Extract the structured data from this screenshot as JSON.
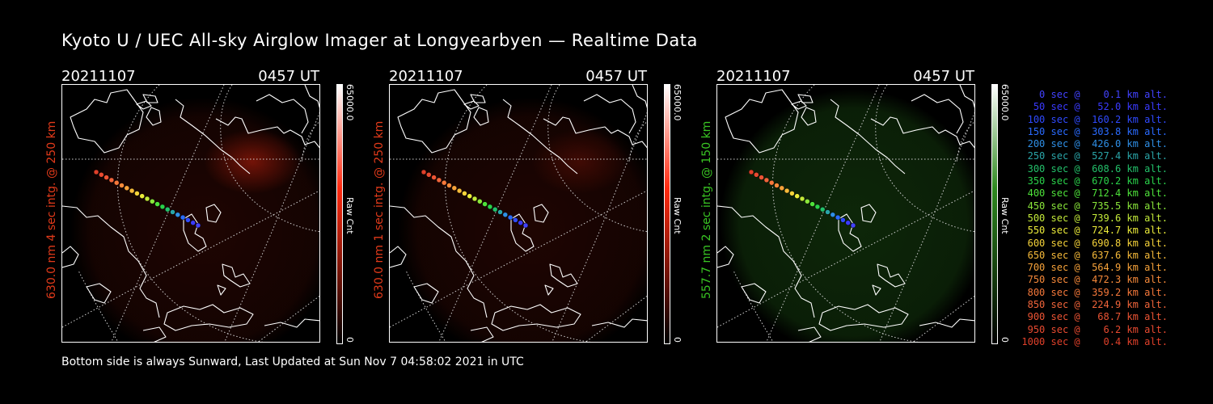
{
  "title": "Kyoto U / UEC All-sky Airglow Imager at Longyearbyen — Realtime Data",
  "footer": "Bottom side is always Sunward, Last Updated at Sun Nov  7 04:58:02 2021 in UTC",
  "panels": [
    {
      "date": "20211107",
      "time": "0457 UT",
      "ylabel": "630.0 nm 4 sec intg. @ 250 km",
      "label_color": "#e23a1a",
      "cbar_max": "65000.0",
      "cbar_min": "0",
      "cbar_unit": "Raw Cnt",
      "glow_color": "#ff2a10"
    },
    {
      "date": "20211107",
      "time": "0457 UT",
      "ylabel": "630.0 nm 1 sec intg. @ 250 km",
      "label_color": "#e23a1a",
      "cbar_max": "65000.0",
      "cbar_min": "0",
      "cbar_unit": "Raw Cnt",
      "glow_color": "#ff2a10"
    },
    {
      "date": "20211107",
      "time": "0457 UT",
      "ylabel": "557.7 nm 2 sec intg. @ 150 km",
      "label_color": "#39c423",
      "cbar_max": "65000.0",
      "cbar_min": "0",
      "cbar_unit": "Raw Cnt",
      "glow_color": "#2f8a20"
    }
  ],
  "legend": [
    {
      "text": "0 sec @    0.1 km alt.",
      "color": "#4242ff"
    },
    {
      "text": "50 sec @   52.0 km alt.",
      "color": "#3a3aff"
    },
    {
      "text": "100 sec @  160.2 km alt.",
      "color": "#2f4aff"
    },
    {
      "text": "150 sec @  303.8 km alt.",
      "color": "#2a6bff"
    },
    {
      "text": "200 sec @  426.0 km alt.",
      "color": "#2f8fe6"
    },
    {
      "text": "250 sec @  527.4 km alt.",
      "color": "#2aa5a8"
    },
    {
      "text": "300 sec @  608.6 km alt.",
      "color": "#23c06a"
    },
    {
      "text": "350 sec @  670.2 km alt.",
      "color": "#2ad24a"
    },
    {
      "text": "400 sec @  712.4 km alt.",
      "color": "#4ee23a"
    },
    {
      "text": "450 sec @  735.5 km alt.",
      "color": "#8ae63a"
    },
    {
      "text": "500 sec @  739.6 km alt.",
      "color": "#c3ea3a"
    },
    {
      "text": "550 sec @  724.7 km alt.",
      "color": "#ecec3a"
    },
    {
      "text": "600 sec @  690.8 km alt.",
      "color": "#f6d33a"
    },
    {
      "text": "650 sec @  637.6 km alt.",
      "color": "#f6ba3a"
    },
    {
      "text": "700 sec @  564.9 km alt.",
      "color": "#f6a23a"
    },
    {
      "text": "750 sec @  472.3 km alt.",
      "color": "#f6893a"
    },
    {
      "text": "800 sec @  359.2 km alt.",
      "color": "#f6783a"
    },
    {
      "text": "850 sec @  224.9 km alt.",
      "color": "#f0643a"
    },
    {
      "text": "900 sec @   68.7 km alt.",
      "color": "#ec5434"
    },
    {
      "text": "950 sec @    6.2 km alt.",
      "color": "#e84a30"
    },
    {
      "text": "1000 sec @    0.4 km alt.",
      "color": "#e0402a"
    }
  ]
}
